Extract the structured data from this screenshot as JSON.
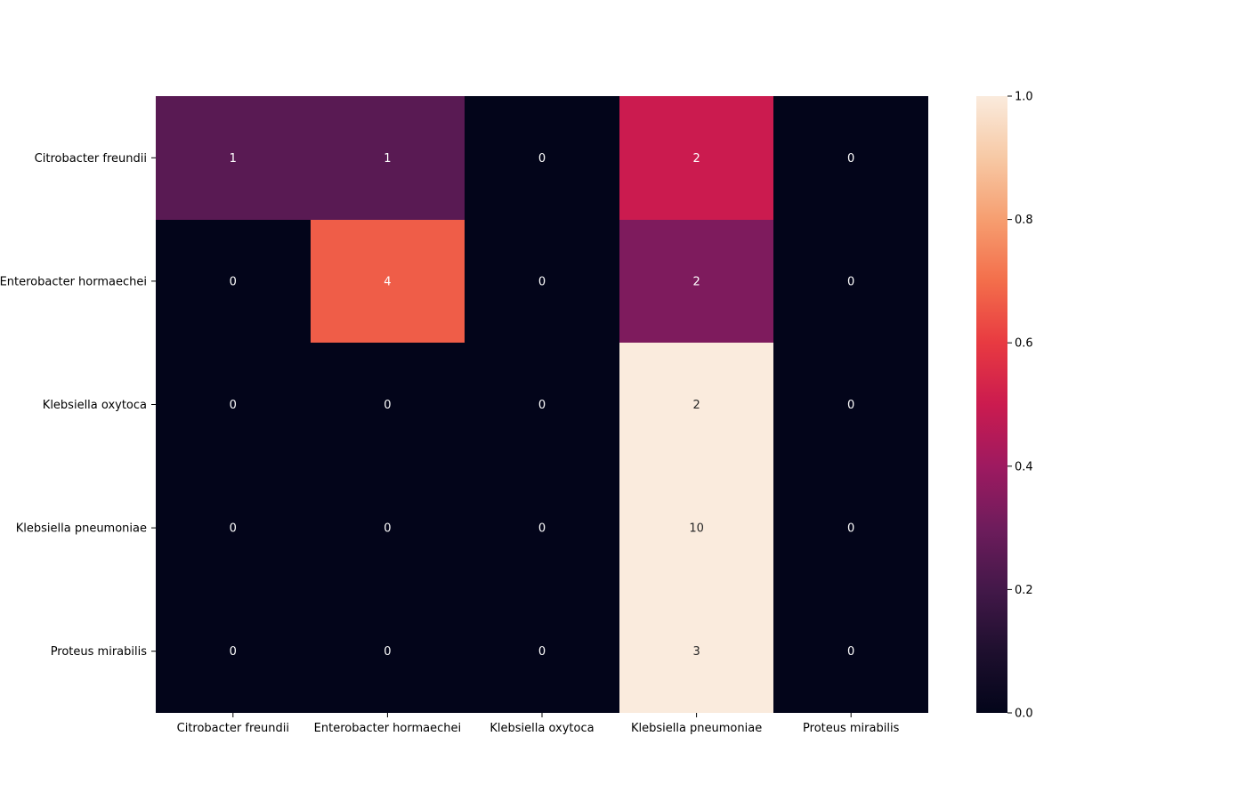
{
  "chart_data": {
    "type": "heatmap",
    "row_labels": [
      "Citrobacter freundii",
      "Enterobacter hormaechei",
      "Klebsiella oxytoca",
      "Klebsiella pneumoniae",
      "Proteus mirabilis"
    ],
    "col_labels": [
      "Citrobacter freundii",
      "Enterobacter hormaechei",
      "Klebsiella oxytoca",
      "Klebsiella pneumoniae",
      "Proteus mirabilis"
    ],
    "values": [
      [
        1,
        1,
        0,
        2,
        0
      ],
      [
        0,
        4,
        0,
        2,
        0
      ],
      [
        0,
        0,
        0,
        2,
        0
      ],
      [
        0,
        0,
        0,
        10,
        0
      ],
      [
        0,
        0,
        0,
        3,
        0
      ]
    ],
    "normalized": [
      [
        0.25,
        0.25,
        0,
        0.5,
        0
      ],
      [
        0,
        0.667,
        0,
        0.333,
        0
      ],
      [
        0,
        0,
        0,
        1.0,
        0
      ],
      [
        0,
        0,
        0,
        1.0,
        0
      ],
      [
        0,
        0,
        0,
        1.0,
        0
      ]
    ],
    "colorbar": {
      "range": [
        0.0,
        1.0
      ],
      "ticks": [
        "0.0",
        "0.2",
        "0.4",
        "0.6",
        "0.8",
        "1.0"
      ],
      "colormap": "rocket"
    },
    "annotation_color_dark_cells": "#ffffff",
    "annotation_color_light_cells": "#262626"
  }
}
